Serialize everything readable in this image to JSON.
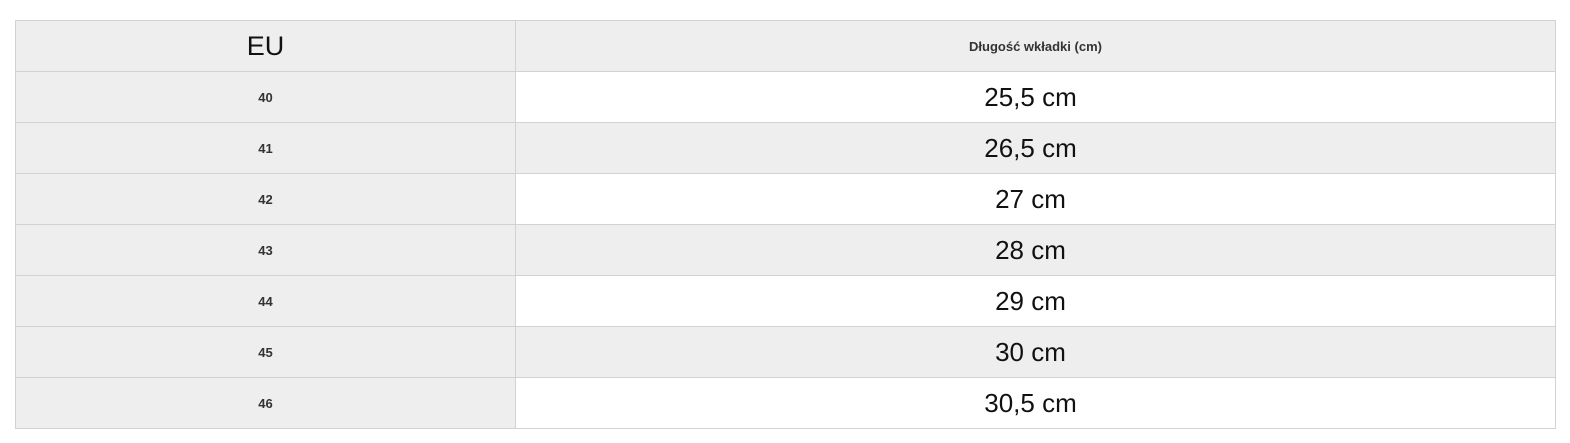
{
  "table": {
    "headers": [
      "EU",
      "Długość wkładki (cm)"
    ],
    "rows": [
      {
        "eu": "40",
        "length": "25,5 cm"
      },
      {
        "eu": "41",
        "length": "26,5 cm"
      },
      {
        "eu": "42",
        "length": "27 cm"
      },
      {
        "eu": "43",
        "length": "28 cm"
      },
      {
        "eu": "44",
        "length": "29 cm"
      },
      {
        "eu": "45",
        "length": "30 cm"
      },
      {
        "eu": "46",
        "length": "30,5 cm"
      }
    ]
  }
}
